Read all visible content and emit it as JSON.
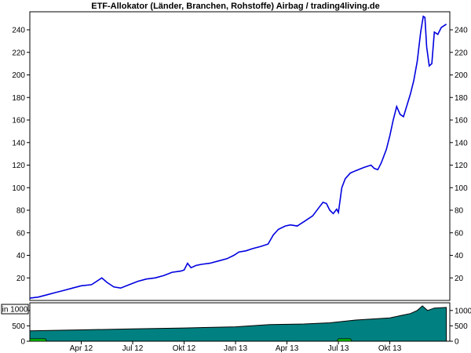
{
  "chart_data": [
    {
      "type": "line",
      "title": "ETF-Allokator (Länder, Branchen, Rohstoffe) Airbag / trading4living.de",
      "x_start": "2012-01",
      "x_end": "2013-12",
      "x_tick_labels": [
        {
          "label": "Apr 12",
          "t": 3.0
        },
        {
          "label": "Jul 12",
          "t": 6.0
        },
        {
          "label": "Okt 12",
          "t": 9.0
        },
        {
          "label": "Jan 13",
          "t": 12.0
        },
        {
          "label": "Apr 13",
          "t": 15.0
        },
        {
          "label": "Jul 13",
          "t": 18.0
        },
        {
          "label": "Okt 13",
          "t": 21.0
        }
      ],
      "ylim": [
        0,
        256
      ],
      "y_ticks": [
        20,
        40,
        60,
        80,
        100,
        120,
        140,
        160,
        180,
        200,
        220,
        240
      ],
      "series": [
        {
          "color": "#0000e0",
          "points": [
            [
              0.0,
              2
            ],
            [
              0.5,
              3
            ],
            [
              1.0,
              5
            ],
            [
              1.5,
              7
            ],
            [
              2.0,
              9
            ],
            [
              2.5,
              11
            ],
            [
              3.0,
              13
            ],
            [
              3.6,
              14
            ],
            [
              4.2,
              20
            ],
            [
              4.5,
              16
            ],
            [
              4.9,
              12
            ],
            [
              5.3,
              11
            ],
            [
              5.8,
              14
            ],
            [
              6.3,
              17
            ],
            [
              6.8,
              19
            ],
            [
              7.3,
              20
            ],
            [
              7.8,
              22
            ],
            [
              8.3,
              25
            ],
            [
              8.8,
              26
            ],
            [
              9.0,
              27
            ],
            [
              9.2,
              33
            ],
            [
              9.4,
              29
            ],
            [
              9.7,
              31
            ],
            [
              10.0,
              32
            ],
            [
              10.5,
              33
            ],
            [
              11.0,
              35
            ],
            [
              11.5,
              37
            ],
            [
              11.9,
              40
            ],
            [
              12.2,
              43
            ],
            [
              12.6,
              44
            ],
            [
              13.0,
              46
            ],
            [
              13.5,
              48
            ],
            [
              13.9,
              50
            ],
            [
              14.2,
              58
            ],
            [
              14.5,
              63
            ],
            [
              14.9,
              66
            ],
            [
              15.2,
              67
            ],
            [
              15.6,
              66
            ],
            [
              16.0,
              70
            ],
            [
              16.5,
              75
            ],
            [
              16.9,
              83
            ],
            [
              17.1,
              87
            ],
            [
              17.3,
              86
            ],
            [
              17.5,
              80
            ],
            [
              17.7,
              77
            ],
            [
              17.9,
              81
            ],
            [
              18.0,
              78
            ],
            [
              18.2,
              100
            ],
            [
              18.4,
              108
            ],
            [
              18.7,
              113
            ],
            [
              19.0,
              115
            ],
            [
              19.5,
              118
            ],
            [
              19.9,
              120
            ],
            [
              20.1,
              117
            ],
            [
              20.3,
              116
            ],
            [
              20.5,
              122
            ],
            [
              20.8,
              134
            ],
            [
              21.0,
              146
            ],
            [
              21.2,
              160
            ],
            [
              21.4,
              172
            ],
            [
              21.6,
              165
            ],
            [
              21.8,
              163
            ],
            [
              22.0,
              173
            ],
            [
              22.2,
              183
            ],
            [
              22.4,
              195
            ],
            [
              22.6,
              212
            ],
            [
              22.8,
              238
            ],
            [
              22.95,
              252
            ],
            [
              23.05,
              251
            ],
            [
              23.15,
              225
            ],
            [
              23.3,
              208
            ],
            [
              23.45,
              210
            ],
            [
              23.6,
              238
            ],
            [
              23.8,
              236
            ],
            [
              24.0,
              242
            ],
            [
              24.3,
              245
            ]
          ]
        }
      ]
    },
    {
      "type": "area",
      "unit_label": "in 1000",
      "ylim": [
        0,
        1250
      ],
      "y_ticks": [
        0,
        500,
        1000
      ],
      "series": [
        {
          "color": "#008080",
          "points": [
            [
              0.0,
              340
            ],
            [
              3.0,
              370
            ],
            [
              6.0,
              400
            ],
            [
              9.0,
              430
            ],
            [
              12.0,
              470
            ],
            [
              14.0,
              540
            ],
            [
              16.0,
              560
            ],
            [
              17.5,
              600
            ],
            [
              19.0,
              690
            ],
            [
              21.0,
              760
            ],
            [
              22.2,
              900
            ],
            [
              22.6,
              1000
            ],
            [
              22.9,
              1150
            ],
            [
              23.2,
              1000
            ],
            [
              23.6,
              1080
            ],
            [
              24.3,
              1100
            ]
          ]
        },
        {
          "color": "#00c000",
          "points": [
            [
              0.0,
              80
            ],
            [
              0.9,
              80
            ],
            [
              1.0,
              0
            ],
            [
              17.9,
              0
            ],
            [
              18.0,
              80
            ],
            [
              18.7,
              80
            ],
            [
              18.8,
              0
            ],
            [
              24.3,
              0
            ]
          ]
        }
      ]
    }
  ]
}
